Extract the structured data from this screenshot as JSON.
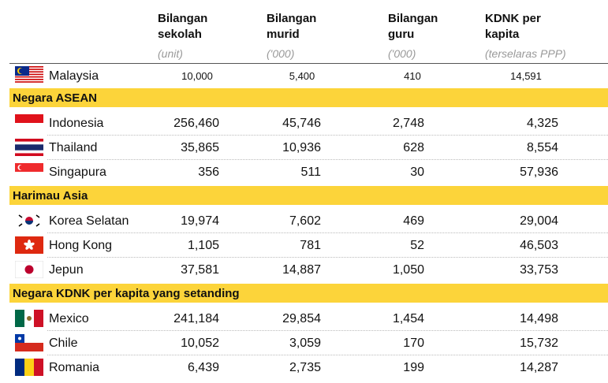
{
  "table": {
    "columns": [
      {
        "title_lines": [
          "Bilangan",
          "sekolah"
        ],
        "unit": "(unit)"
      },
      {
        "title_lines": [
          "Bilangan",
          "murid"
        ],
        "unit": "('000)"
      },
      {
        "title_lines": [
          "Bilangan",
          "guru"
        ],
        "unit": "('000)"
      },
      {
        "title_lines": [
          "KDNK per",
          "kapita"
        ],
        "unit": "(terselaras PPP)"
      }
    ],
    "reference": {
      "country": "Malaysia",
      "values": [
        "10,000",
        "5,400",
        "410",
        "14,591"
      ]
    },
    "sections": [
      {
        "name": "Negara ASEAN",
        "rows": [
          {
            "country": "Indonesia",
            "values": [
              "256,460",
              "45,746",
              "2,748",
              "4,325"
            ]
          },
          {
            "country": "Thailand",
            "values": [
              "35,865",
              "10,936",
              "628",
              "8,554"
            ]
          },
          {
            "country": "Singapura",
            "values": [
              "356",
              "511",
              "30",
              "57,936"
            ]
          }
        ]
      },
      {
        "name": "Harimau Asia",
        "rows": [
          {
            "country": "Korea Selatan",
            "values": [
              "19,974",
              "7,602",
              "469",
              "29,004"
            ]
          },
          {
            "country": "Hong Kong",
            "values": [
              "1,105",
              "781",
              "52",
              "46,503"
            ]
          },
          {
            "country": "Jepun",
            "values": [
              "37,581",
              "14,887",
              "1,050",
              "33,753"
            ]
          }
        ]
      },
      {
        "name": "Negara KDNK per kapita yang setanding",
        "rows": [
          {
            "country": "Mexico",
            "values": [
              "241,184",
              "29,854",
              "1,454",
              "14,498"
            ]
          },
          {
            "country": "Chile",
            "values": [
              "10,052",
              "3,059",
              "170",
              "15,732"
            ]
          },
          {
            "country": "Romania",
            "values": [
              "6,439",
              "2,735",
              "199",
              "14,287"
            ]
          }
        ]
      }
    ]
  }
}
